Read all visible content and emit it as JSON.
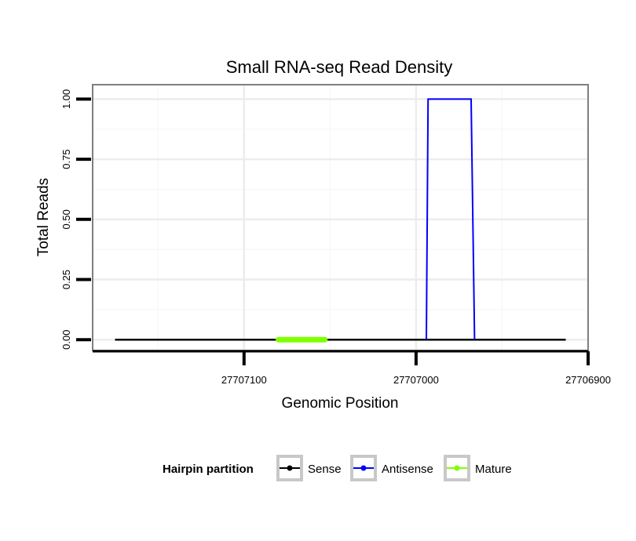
{
  "chart_data": {
    "type": "line",
    "title": "Small RNA-seq Read Density",
    "xlabel": "Genomic Position",
    "ylabel": "Total Reads",
    "x_reversed": true,
    "xlim": [
      27707188,
      27706900
    ],
    "ylim": [
      -0.045,
      1.06
    ],
    "x_ticks": [
      27707100,
      27707000,
      27706900
    ],
    "x_tick_labels": [
      "27707100",
      "27707000",
      "27706900"
    ],
    "y_ticks": [
      0,
      0.25,
      0.5,
      0.75,
      1.0
    ],
    "y_tick_labels": [
      "0.00",
      "0.25",
      "0.50",
      "0.75",
      "1.00"
    ],
    "grid": true,
    "legend_position": "bottom",
    "legend_title": "Hairpin partition",
    "series": [
      {
        "name": "Sense",
        "color": "#000000",
        "x": [
          27707175,
          27706913
        ],
        "y": [
          0,
          0
        ]
      },
      {
        "name": "Antisense",
        "color": "#0000ff",
        "x": [
          27706994,
          27706993,
          27706968,
          27706966
        ],
        "y": [
          0,
          1,
          1,
          0
        ]
      },
      {
        "name": "Mature",
        "color": "#7fff00",
        "x": [
          27707080,
          27707053
        ],
        "y": [
          0,
          0
        ]
      }
    ]
  }
}
